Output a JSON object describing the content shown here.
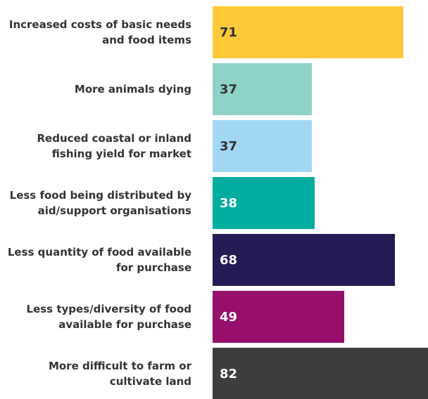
{
  "chart_data": {
    "type": "bar",
    "orientation": "horizontal",
    "categories": [
      "Increased costs of basic needs and food items",
      "More animals dying",
      "Reduced coastal or inland fishing yield for market",
      "Less food being distributed by aid/support organisations",
      "Less quantity of food available for purchase",
      "Less types/diversity of food available for purchase",
      "More difficult to farm or cultivate land"
    ],
    "series": [
      {
        "values": [
          71,
          37,
          37,
          38,
          68,
          49,
          82
        ],
        "colors": [
          "#fdc93a",
          "#8fd3c8",
          "#a3d8f5",
          "#00ad9f",
          "#231c55",
          "#960f6b",
          "#3d3d3d"
        ]
      }
    ]
  }
}
